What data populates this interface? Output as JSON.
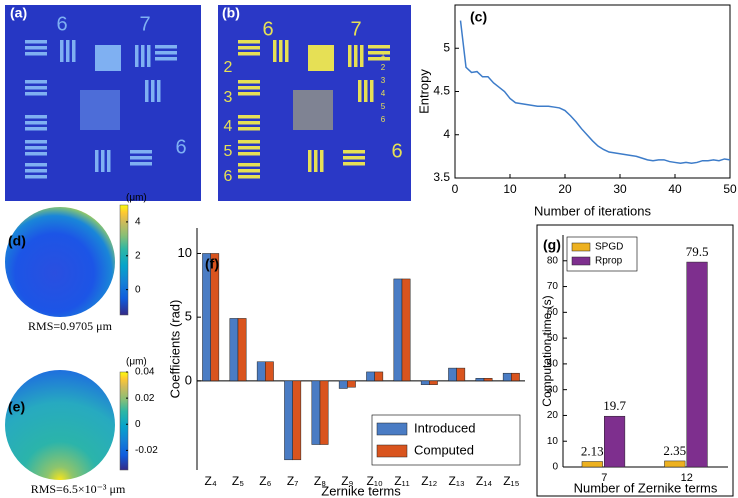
{
  "images": [
    {
      "label": "(a)",
      "digits": [
        "6",
        "7",
        "6"
      ]
    },
    {
      "label": "(b)",
      "digits": [
        "6",
        "7",
        "2",
        "3",
        "4",
        "5",
        "6",
        "6",
        "1",
        "2",
        "3",
        "4",
        "5",
        "6"
      ]
    }
  ],
  "chart_data": [
    {
      "type": "line",
      "label": "(c)",
      "x_label": "Number of iterations",
      "y_label": "Entropy",
      "color": "#3d7cc9",
      "x": [
        1,
        2,
        3,
        4,
        5,
        6,
        7,
        8,
        9,
        10,
        11,
        12,
        13,
        14,
        15,
        16,
        17,
        18,
        19,
        20,
        21,
        22,
        23,
        24,
        25,
        26,
        27,
        28,
        29,
        30,
        31,
        32,
        33,
        34,
        35,
        36,
        37,
        38,
        39,
        40,
        41,
        42,
        43,
        44,
        45,
        46,
        47,
        48,
        49,
        50
      ],
      "values": [
        5.32,
        4.78,
        4.72,
        4.73,
        4.67,
        4.67,
        4.6,
        4.55,
        4.5,
        4.42,
        4.37,
        4.36,
        4.35,
        4.34,
        4.33,
        4.33,
        4.33,
        4.32,
        4.31,
        4.28,
        4.22,
        4.15,
        4.07,
        4.0,
        3.93,
        3.87,
        3.83,
        3.8,
        3.79,
        3.78,
        3.77,
        3.76,
        3.75,
        3.73,
        3.71,
        3.7,
        3.71,
        3.71,
        3.69,
        3.68,
        3.67,
        3.68,
        3.67,
        3.68,
        3.7,
        3.7,
        3.71,
        3.7,
        3.72,
        3.71
      ],
      "xlim": [
        0,
        50
      ],
      "xticks": [
        0,
        10,
        20,
        30,
        40,
        50
      ],
      "ylim": [
        3.5,
        5.5
      ],
      "yticks": [
        3.5,
        4,
        4.5,
        5
      ]
    },
    {
      "type": "heatmap",
      "label": "(d)",
      "unit": "(μm)",
      "annotation": "RMS=0.9705 μm",
      "clim": [
        -1.5,
        5
      ],
      "cticks": [
        0,
        2,
        4
      ]
    },
    {
      "type": "heatmap",
      "label": "(e)",
      "unit": "(μm)",
      "annotation": "RMS=6.5×10⁻³ μm",
      "clim": [
        -0.035,
        0.04
      ],
      "cticks": [
        -0.02,
        0,
        0.02,
        0.04
      ]
    },
    {
      "type": "bar",
      "label": "(f)",
      "x_label": "Zernike terms",
      "y_label": "Coefficients (rad)",
      "categories": [
        "Z₄",
        "Z₅",
        "Z₆",
        "Z₇",
        "Z₈",
        "Z₉",
        "Z₁₀",
        "Z₁₁",
        "Z₁₂",
        "Z₁₃",
        "Z₁₄",
        "Z₁₅"
      ],
      "series": [
        {
          "name": "Introduced",
          "color": "#4a7cc4",
          "values": [
            10,
            4.9,
            1.5,
            -6.2,
            -5.0,
            -0.6,
            0.7,
            8,
            -0.3,
            1.0,
            0.2,
            0.6
          ]
        },
        {
          "name": "Computed",
          "color": "#d9541e",
          "values": [
            10,
            4.9,
            1.5,
            -6.2,
            -5.0,
            -0.5,
            0.7,
            8,
            -0.3,
            1.0,
            0.2,
            0.6
          ]
        }
      ],
      "ylim": [
        -7,
        12
      ],
      "yticks": [
        0,
        5,
        10
      ],
      "legend": "lower-right"
    },
    {
      "type": "bar",
      "label": "(g)",
      "x_label": "Number of Zernike terms",
      "y_label": "Computation time (s)",
      "categories": [
        "7",
        "12"
      ],
      "series": [
        {
          "name": "SPGD",
          "color": "#edb120",
          "values": [
            2.13,
            2.35
          ]
        },
        {
          "name": "Rprop",
          "color": "#7e2f8e",
          "values": [
            19.7,
            79.5
          ]
        }
      ],
      "ylim": [
        0,
        90
      ],
      "yticks": [
        0,
        10,
        20,
        30,
        40,
        50,
        60,
        70,
        80
      ],
      "legend": "upper-left",
      "data_labels": true
    }
  ]
}
